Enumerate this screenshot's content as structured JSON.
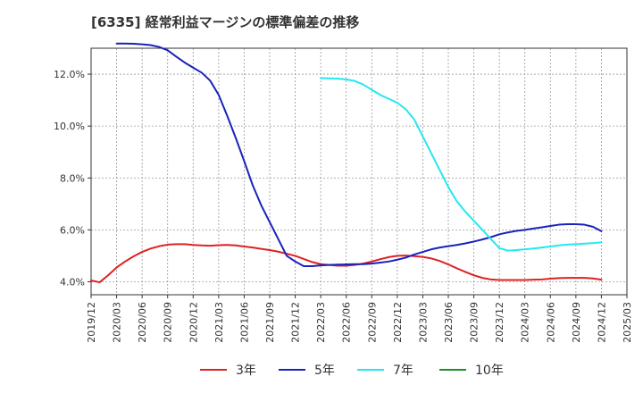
{
  "chart_data": {
    "type": "line",
    "title": "[6335]  経常利益マージンの標準偏差の推移",
    "xlabel": "",
    "ylabel": "",
    "x_ticks": [
      "2019/12",
      "2020/03",
      "2020/06",
      "2020/09",
      "2020/12",
      "2021/03",
      "2021/06",
      "2021/09",
      "2021/12",
      "2022/03",
      "2022/06",
      "2022/09",
      "2022/12",
      "2023/03",
      "2023/06",
      "2023/09",
      "2023/12",
      "2024/03",
      "2024/06",
      "2024/09",
      "2024/12",
      "2025/03"
    ],
    "y_ticks": [
      "4.0%",
      "6.0%",
      "8.0%",
      "10.0%",
      "12.0%"
    ],
    "y_tick_values": [
      4,
      6,
      8,
      10,
      12
    ],
    "ylim": [
      3.5,
      13.0
    ],
    "grid": true,
    "legend_position": "bottom",
    "series": [
      {
        "name": "3年",
        "color": "#dd2222",
        "points": [
          [
            "2019/12",
            4.05
          ],
          [
            "2020/01",
            3.98
          ],
          [
            "2020/02",
            4.25
          ],
          [
            "2020/03",
            4.55
          ],
          [
            "2020/04",
            4.78
          ],
          [
            "2020/05",
            4.98
          ],
          [
            "2020/06",
            5.15
          ],
          [
            "2020/07",
            5.28
          ],
          [
            "2020/08",
            5.37
          ],
          [
            "2020/09",
            5.43
          ],
          [
            "2020/10",
            5.45
          ],
          [
            "2020/11",
            5.45
          ],
          [
            "2020/12",
            5.42
          ],
          [
            "2021/01",
            5.4
          ],
          [
            "2021/02",
            5.39
          ],
          [
            "2021/03",
            5.41
          ],
          [
            "2021/04",
            5.42
          ],
          [
            "2021/05",
            5.4
          ],
          [
            "2021/06",
            5.36
          ],
          [
            "2021/07",
            5.32
          ],
          [
            "2021/08",
            5.27
          ],
          [
            "2021/09",
            5.22
          ],
          [
            "2021/10",
            5.16
          ],
          [
            "2021/11",
            5.08
          ],
          [
            "2021/12",
            5.0
          ],
          [
            "2022/01",
            4.88
          ],
          [
            "2022/02",
            4.76
          ],
          [
            "2022/03",
            4.68
          ],
          [
            "2022/04",
            4.65
          ],
          [
            "2022/05",
            4.62
          ],
          [
            "2022/06",
            4.62
          ],
          [
            "2022/07",
            4.65
          ],
          [
            "2022/08",
            4.7
          ],
          [
            "2022/09",
            4.78
          ],
          [
            "2022/10",
            4.87
          ],
          [
            "2022/11",
            4.95
          ],
          [
            "2022/12",
            5.0
          ],
          [
            "2023/01",
            5.01
          ],
          [
            "2023/02",
            4.99
          ],
          [
            "2023/03",
            4.96
          ],
          [
            "2023/04",
            4.9
          ],
          [
            "2023/05",
            4.8
          ],
          [
            "2023/06",
            4.67
          ],
          [
            "2023/07",
            4.52
          ],
          [
            "2023/08",
            4.38
          ],
          [
            "2023/09",
            4.25
          ],
          [
            "2023/10",
            4.15
          ],
          [
            "2023/11",
            4.09
          ],
          [
            "2023/12",
            4.07
          ],
          [
            "2024/01",
            4.07
          ],
          [
            "2024/02",
            4.07
          ],
          [
            "2024/03",
            4.07
          ],
          [
            "2024/04",
            4.08
          ],
          [
            "2024/05",
            4.09
          ],
          [
            "2024/06",
            4.12
          ],
          [
            "2024/07",
            4.14
          ],
          [
            "2024/08",
            4.15
          ],
          [
            "2024/09",
            4.15
          ],
          [
            "2024/10",
            4.15
          ],
          [
            "2024/11",
            4.13
          ],
          [
            "2024/12",
            4.08
          ]
        ]
      },
      {
        "name": "5年",
        "color": "#1a22bb",
        "points": [
          [
            "2020/03",
            13.18
          ],
          [
            "2020/04",
            13.18
          ],
          [
            "2020/05",
            13.17
          ],
          [
            "2020/06",
            13.15
          ],
          [
            "2020/07",
            13.12
          ],
          [
            "2020/08",
            13.05
          ],
          [
            "2020/09",
            12.92
          ],
          [
            "2020/10",
            12.68
          ],
          [
            "2020/11",
            12.45
          ],
          [
            "2020/12",
            12.25
          ],
          [
            "2021/01",
            12.06
          ],
          [
            "2021/02",
            11.75
          ],
          [
            "2021/03",
            11.2
          ],
          [
            "2021/04",
            10.4
          ],
          [
            "2021/05",
            9.55
          ],
          [
            "2021/06",
            8.65
          ],
          [
            "2021/07",
            7.72
          ],
          [
            "2021/08",
            6.95
          ],
          [
            "2021/09",
            6.3
          ],
          [
            "2021/10",
            5.65
          ],
          [
            "2021/11",
            5.0
          ],
          [
            "2021/12",
            4.78
          ],
          [
            "2022/01",
            4.6
          ],
          [
            "2022/02",
            4.6
          ],
          [
            "2022/03",
            4.63
          ],
          [
            "2022/04",
            4.65
          ],
          [
            "2022/05",
            4.66
          ],
          [
            "2022/06",
            4.67
          ],
          [
            "2022/07",
            4.68
          ],
          [
            "2022/08",
            4.68
          ],
          [
            "2022/09",
            4.7
          ],
          [
            "2022/10",
            4.74
          ],
          [
            "2022/11",
            4.78
          ],
          [
            "2022/12",
            4.85
          ],
          [
            "2023/01",
            4.93
          ],
          [
            "2023/02",
            5.05
          ],
          [
            "2023/03",
            5.15
          ],
          [
            "2023/04",
            5.25
          ],
          [
            "2023/05",
            5.32
          ],
          [
            "2023/06",
            5.37
          ],
          [
            "2023/07",
            5.42
          ],
          [
            "2023/08",
            5.48
          ],
          [
            "2023/09",
            5.55
          ],
          [
            "2023/10",
            5.63
          ],
          [
            "2023/11",
            5.72
          ],
          [
            "2023/12",
            5.83
          ],
          [
            "2024/01",
            5.9
          ],
          [
            "2024/02",
            5.96
          ],
          [
            "2024/03",
            6.0
          ],
          [
            "2024/04",
            6.05
          ],
          [
            "2024/05",
            6.1
          ],
          [
            "2024/06",
            6.15
          ],
          [
            "2024/07",
            6.2
          ],
          [
            "2024/08",
            6.22
          ],
          [
            "2024/09",
            6.22
          ],
          [
            "2024/10",
            6.2
          ],
          [
            "2024/11",
            6.12
          ],
          [
            "2024/12",
            5.95
          ]
        ]
      },
      {
        "name": "7年",
        "color": "#22e8f0",
        "points": [
          [
            "2022/03",
            11.85
          ],
          [
            "2022/04",
            11.84
          ],
          [
            "2022/05",
            11.83
          ],
          [
            "2022/06",
            11.8
          ],
          [
            "2022/07",
            11.74
          ],
          [
            "2022/08",
            11.6
          ],
          [
            "2022/09",
            11.4
          ],
          [
            "2022/10",
            11.2
          ],
          [
            "2022/11",
            11.05
          ],
          [
            "2022/12",
            10.9
          ],
          [
            "2023/01",
            10.65
          ],
          [
            "2023/02",
            10.25
          ],
          [
            "2023/03",
            9.6
          ],
          [
            "2023/04",
            8.95
          ],
          [
            "2023/05",
            8.3
          ],
          [
            "2023/06",
            7.65
          ],
          [
            "2023/07",
            7.1
          ],
          [
            "2023/08",
            6.7
          ],
          [
            "2023/09",
            6.35
          ],
          [
            "2023/10",
            6.0
          ],
          [
            "2023/11",
            5.65
          ],
          [
            "2023/12",
            5.3
          ],
          [
            "2024/01",
            5.2
          ],
          [
            "2024/02",
            5.22
          ],
          [
            "2024/03",
            5.25
          ],
          [
            "2024/04",
            5.28
          ],
          [
            "2024/05",
            5.32
          ],
          [
            "2024/06",
            5.36
          ],
          [
            "2024/07",
            5.4
          ],
          [
            "2024/08",
            5.43
          ],
          [
            "2024/09",
            5.45
          ],
          [
            "2024/10",
            5.47
          ],
          [
            "2024/11",
            5.49
          ],
          [
            "2024/12",
            5.52
          ]
        ]
      },
      {
        "name": "10年",
        "color": "#228b22",
        "points": []
      }
    ]
  }
}
